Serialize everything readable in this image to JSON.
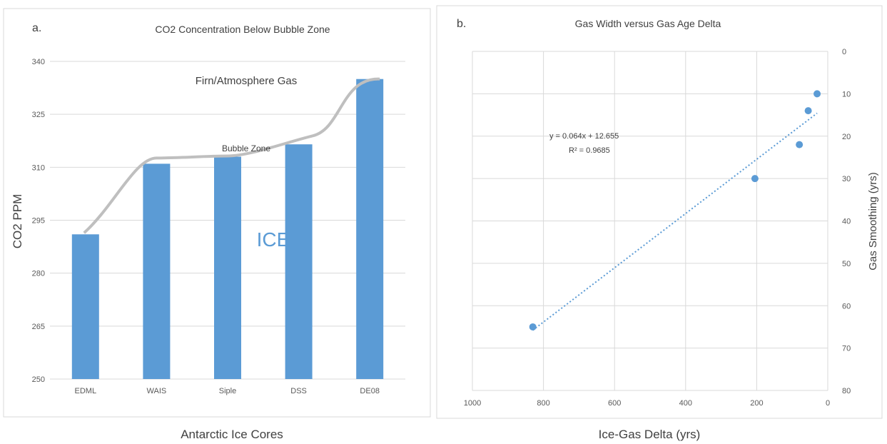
{
  "chart_data": [
    {
      "type": "bar",
      "panel_letter": "a.",
      "title": "CO2 Concentration Below Bubble Zone",
      "xlabel": "Antarctic Ice Cores",
      "ylabel": "CO2 PPM",
      "categories": [
        "EDML",
        "WAIS",
        "Siple",
        "DSS",
        "DE08"
      ],
      "values": [
        291,
        311,
        313,
        316.5,
        335
      ],
      "ylim": [
        250,
        340
      ],
      "yticks": [
        "250",
        "265",
        "280",
        "295",
        "310",
        "325",
        "340"
      ],
      "grid": true,
      "bar_color": "#5b9bd5",
      "annotations": {
        "firn_label": "Firn/Atmosphere Gas",
        "firn_color": "#c55a11",
        "bubble_label": "Bubble Zone",
        "ice_label": "ICE",
        "ice_color": "#5b9bd5",
        "curve_color": "#bfbfbf"
      }
    },
    {
      "type": "scatter",
      "panel_letter": "b.",
      "title": "Gas Width versus Gas Age Delta",
      "xlabel": "Ice-Gas Delta (yrs)",
      "ylabel": "Gas Smoothing (yrs)",
      "xlim": [
        1000,
        0
      ],
      "ylim": [
        0,
        80
      ],
      "x_reversed": true,
      "y_reversed": true,
      "xticks": [
        "1000",
        "800",
        "600",
        "400",
        "200",
        "0"
      ],
      "yticks": [
        "0",
        "10",
        "20",
        "30",
        "40",
        "50",
        "60",
        "70",
        "80"
      ],
      "grid": true,
      "point_color": "#5b9bd5",
      "points": [
        {
          "x": 830,
          "y": 65
        },
        {
          "x": 205,
          "y": 30
        },
        {
          "x": 80,
          "y": 22
        },
        {
          "x": 55,
          "y": 14
        },
        {
          "x": 30,
          "y": 10
        }
      ],
      "trendline": {
        "equation": "y = 0.064x + 12.655",
        "r2": "R² = 0.9685",
        "slope": 0.064,
        "intercept": 12.655,
        "x_range": [
          830,
          30
        ]
      }
    }
  ]
}
